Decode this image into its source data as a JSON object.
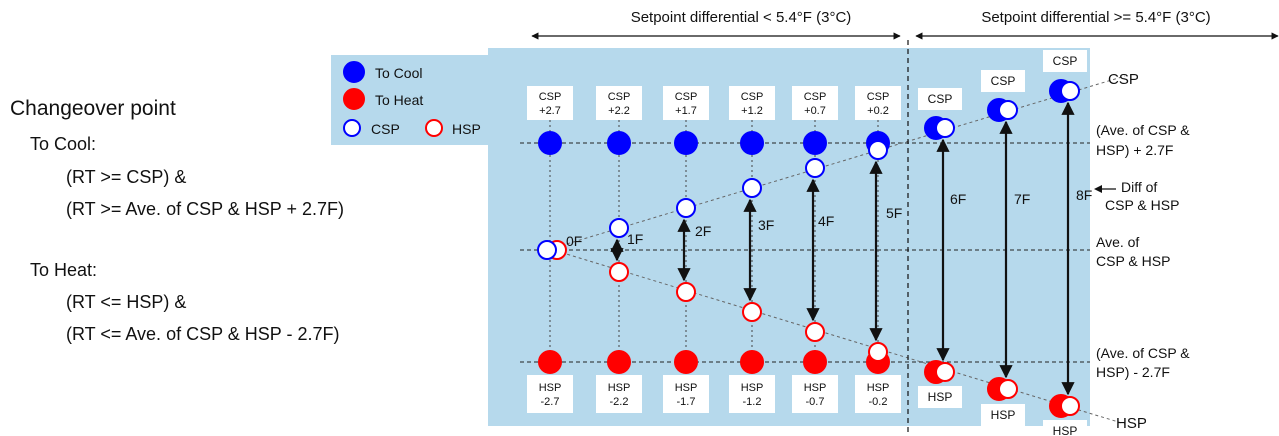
{
  "top_labels": {
    "left": "Setpoint differential < 5.4°F (3°C)",
    "right": "Setpoint differential >= 5.4°F (3°C)"
  },
  "left_panel": {
    "title": "Changeover point",
    "cool_heading": "To Cool:",
    "cool_line1": "(RT >= CSP) &",
    "cool_line2": "(RT >= Ave. of CSP & HSP + 2.7F)",
    "heat_heading": "To Heat:",
    "heat_line1": "(RT <= HSP) &",
    "heat_line2": "(RT <= Ave. of CSP & HSP - 2.7F)"
  },
  "legend": {
    "to_cool": "To Cool",
    "to_heat": "To Heat",
    "csp": "CSP",
    "hsp": "HSP"
  },
  "csp_top_labels": [
    [
      "CSP",
      "+2.7"
    ],
    [
      "CSP",
      "+2.2"
    ],
    [
      "CSP",
      "+1.7"
    ],
    [
      "CSP",
      "+1.2"
    ],
    [
      "CSP",
      "+0.7"
    ],
    [
      "CSP",
      "+0.2"
    ]
  ],
  "hsp_bottom_labels": [
    [
      "HSP",
      "-2.7"
    ],
    [
      "HSP",
      "-2.2"
    ],
    [
      "HSP",
      "-1.7"
    ],
    [
      "HSP",
      "-1.2"
    ],
    [
      "HSP",
      "-0.7"
    ],
    [
      "HSP",
      "-0.2"
    ]
  ],
  "csp_right_labels": [
    "CSP",
    "CSP",
    "CSP"
  ],
  "hsp_right_labels": [
    "HSP",
    "HSP",
    "HSP"
  ],
  "diff_labels": [
    "0F",
    "1F",
    "2F",
    "3F",
    "4F",
    "5F",
    "6F",
    "7F",
    "8F"
  ],
  "right_annotations": {
    "csp_line": "CSP",
    "upper_line1": "(Ave. of CSP &",
    "upper_line2": "HSP) + 2.7F",
    "diff_line1": "Diff of",
    "diff_line2": "CSP & HSP",
    "avg_line1": "Ave. of",
    "avg_line2": "CSP & HSP",
    "lower_line1": "(Ave. of CSP &",
    "lower_line2": "HSP) - 2.7F",
    "hsp_line": "HSP"
  },
  "colors": {
    "panel": "#b6d9ec",
    "cool": "#0000ff",
    "heat": "#ff0000",
    "text": "#111111"
  }
}
